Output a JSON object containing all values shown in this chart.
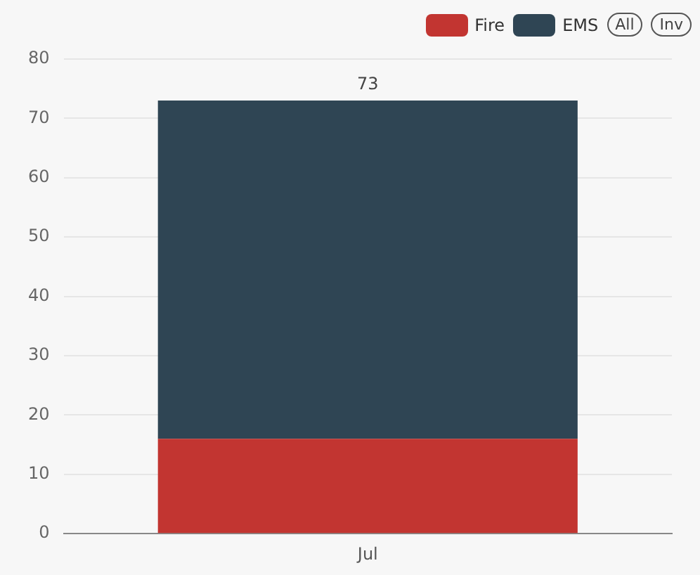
{
  "chart_data": {
    "type": "bar",
    "categories": [
      "Jul"
    ],
    "series": [
      {
        "name": "Fire",
        "color": "#c23531",
        "values": [
          16
        ]
      },
      {
        "name": "EMS",
        "color": "#2f4554",
        "values": [
          57
        ]
      }
    ],
    "stacked": true,
    "totals": [
      "73"
    ],
    "ylim": [
      0,
      80
    ],
    "yticks": [
      0,
      10,
      20,
      30,
      40,
      50,
      60,
      70,
      80
    ],
    "grid": "y",
    "legend": "top right",
    "annotations": [
      "All",
      "Inv"
    ]
  }
}
